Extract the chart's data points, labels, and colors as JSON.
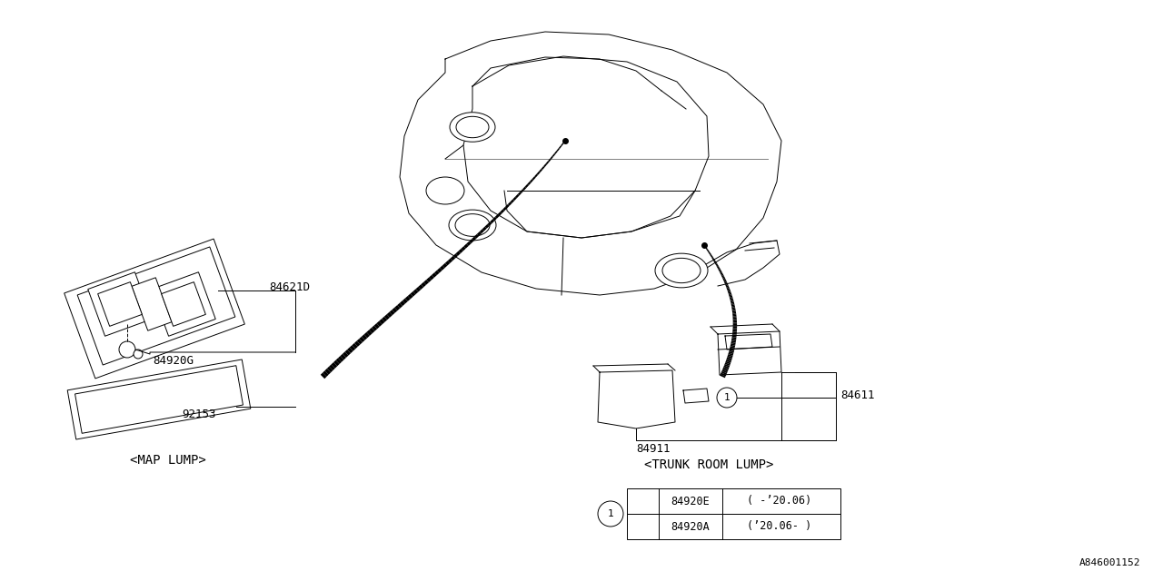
{
  "bg_color": "#ffffff",
  "line_color": "#000000",
  "watermark": "A846001152",
  "map_lump_label": "<MAP LUMP>",
  "trunk_room_lump_label": "<TRUNK ROOM LUMP>",
  "label_84920G": "84920G",
  "label_84621D": "84621D",
  "label_92153": "92153",
  "label_84611": "84611",
  "label_84911": "84911",
  "table_row1_pn": "84920E",
  "table_row1_dt": "( -’20.06)",
  "table_row2_pn": "84920A",
  "table_row2_dt": "(’20.06- )"
}
